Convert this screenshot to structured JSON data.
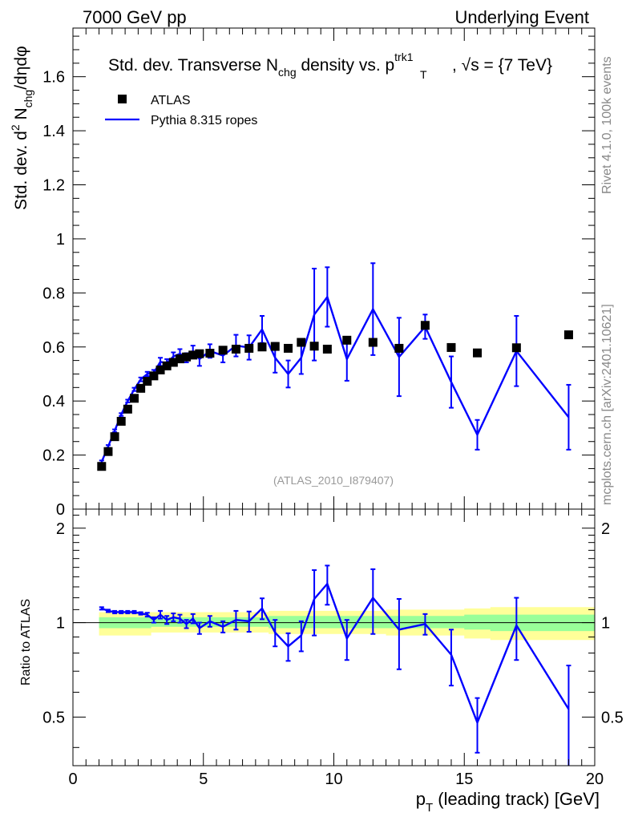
{
  "header": {
    "left_label": "7000 GeV pp",
    "right_label": "Underlying Event"
  },
  "side_labels": {
    "rivet": "Rivet 4.1.0,  100k events",
    "mcplots": "mcplots.cern.ch [arXiv:2401.10621]"
  },
  "chart_data": [
    {
      "type": "scatter",
      "panel": "main",
      "title": {
        "prefix": "Std. dev. Transverse N",
        "sub1": "chg",
        "middle": " density vs. p",
        "sub2": "T",
        "sup2": "trk1",
        "suffix": ", √s = {7 TeV}"
      },
      "ylabel": {
        "prefix": "Std. dev. d",
        "sup": "2",
        "n": " N",
        "sub": "chg",
        "suffix": "/dηdφ"
      },
      "analysis_label": "(ATLAS_2010_I879407)",
      "xlim": [
        0,
        20
      ],
      "ylim": [
        0,
        1.78
      ],
      "y_ticks": [
        0,
        0.2,
        0.4,
        0.6,
        0.8,
        1,
        1.2,
        1.4,
        1.6
      ],
      "y_tick_labels": [
        "0",
        "0.2",
        "0.4",
        "0.6",
        "0.8",
        "1",
        "1.2",
        "1.4",
        "1.6"
      ],
      "legend": [
        {
          "name": "ATLAS",
          "marker": "square",
          "color": "#000000"
        },
        {
          "name": "Pythia 8.315 ropes",
          "marker": "line",
          "color": "#0000ff"
        }
      ],
      "series": [
        {
          "name": "ATLAS",
          "x": [
            1.1,
            1.35,
            1.6,
            1.85,
            2.1,
            2.35,
            2.6,
            2.85,
            3.1,
            3.35,
            3.6,
            3.85,
            4.1,
            4.35,
            4.6,
            4.85,
            5.25,
            5.75,
            6.25,
            6.75,
            7.25,
            7.75,
            8.25,
            8.75,
            9.25,
            9.75,
            10.5,
            11.5,
            12.5,
            13.5,
            14.5,
            15.5,
            17.0,
            19.0
          ],
          "y": [
            0.158,
            0.213,
            0.268,
            0.325,
            0.37,
            0.41,
            0.447,
            0.473,
            0.493,
            0.515,
            0.53,
            0.543,
            0.556,
            0.563,
            0.57,
            0.575,
            0.577,
            0.588,
            0.592,
            0.595,
            0.6,
            0.602,
            0.595,
            0.617,
            0.603,
            0.592,
            0.625,
            0.617,
            0.595,
            0.68,
            0.598,
            0.578,
            0.597,
            0.645
          ]
        },
        {
          "name": "Pythia 8.315 ropes",
          "x": [
            1.1,
            1.35,
            1.6,
            1.85,
            2.1,
            2.35,
            2.6,
            2.85,
            3.1,
            3.35,
            3.6,
            3.85,
            4.1,
            4.35,
            4.6,
            4.85,
            5.25,
            5.75,
            6.25,
            6.75,
            7.25,
            7.75,
            8.25,
            8.75,
            9.25,
            9.75,
            10.5,
            11.5,
            12.5,
            13.5,
            14.5,
            15.5,
            17.0,
            19.0
          ],
          "y": [
            0.175,
            0.232,
            0.29,
            0.35,
            0.4,
            0.443,
            0.48,
            0.5,
            0.505,
            0.545,
            0.54,
            0.565,
            0.575,
            0.56,
            0.585,
            0.555,
            0.585,
            0.568,
            0.605,
            0.598,
            0.665,
            0.56,
            0.5,
            0.56,
            0.72,
            0.785,
            0.555,
            0.74,
            0.563,
            0.675,
            0.47,
            0.275,
            0.585,
            0.34
          ],
          "yerr": [
            0.005,
            0.005,
            0.005,
            0.005,
            0.005,
            0.006,
            0.007,
            0.008,
            0.01,
            0.015,
            0.015,
            0.015,
            0.017,
            0.017,
            0.02,
            0.025,
            0.025,
            0.025,
            0.04,
            0.045,
            0.05,
            0.055,
            0.05,
            0.06,
            0.17,
            0.11,
            0.08,
            0.17,
            0.145,
            0.045,
            0.095,
            0.055,
            0.13,
            0.12
          ]
        }
      ]
    },
    {
      "type": "line",
      "panel": "ratio",
      "ylabel": "Ratio to ATLAS",
      "xlabel": {
        "prefix": "p",
        "sub": "T",
        "suffix": " (leading track) [GeV]"
      },
      "xlim": [
        0,
        20
      ],
      "ylim": [
        0.35,
        2.3
      ],
      "y_scale": "log",
      "x_ticks": [
        0,
        5,
        10,
        15,
        20
      ],
      "x_tick_labels": [
        "0",
        "5",
        "10",
        "15",
        "20"
      ],
      "y_ticks": [
        0.5,
        1,
        2
      ],
      "y_tick_labels": [
        "0.5",
        "1",
        "2"
      ],
      "bands": [
        {
          "name": "total uncertainty",
          "color": "#ffff99",
          "x": [
            1.0,
            3.0,
            7.5,
            12.0,
            15.0,
            16.0,
            20.0
          ],
          "lower": [
            0.91,
            0.93,
            0.92,
            0.91,
            0.89,
            0.88,
            0.87
          ],
          "upper": [
            1.08,
            1.08,
            1.09,
            1.1,
            1.11,
            1.12,
            1.12
          ]
        },
        {
          "name": "stat uncertainty",
          "color": "#99ff99",
          "x": [
            1.0,
            3.0,
            7.5,
            12.0,
            15.0,
            16.0,
            20.0
          ],
          "lower": [
            0.96,
            0.97,
            0.96,
            0.96,
            0.95,
            0.94,
            0.94
          ],
          "upper": [
            1.04,
            1.04,
            1.05,
            1.05,
            1.06,
            1.06,
            1.06
          ]
        }
      ],
      "series": [
        {
          "name": "Pythia 8.315 ropes / ATLAS",
          "x": [
            1.1,
            1.35,
            1.6,
            1.85,
            2.1,
            2.35,
            2.6,
            2.85,
            3.1,
            3.35,
            3.6,
            3.85,
            4.1,
            4.35,
            4.6,
            4.85,
            5.25,
            5.75,
            6.25,
            6.75,
            7.25,
            7.75,
            8.25,
            8.75,
            9.25,
            9.75,
            10.5,
            11.5,
            12.5,
            13.5,
            14.5,
            15.5,
            17.0,
            19.0
          ],
          "y": [
            1.11,
            1.09,
            1.08,
            1.08,
            1.08,
            1.08,
            1.07,
            1.06,
            1.02,
            1.06,
            1.02,
            1.04,
            1.03,
            0.99,
            1.03,
            0.96,
            1.01,
            0.97,
            1.02,
            1.01,
            1.11,
            0.93,
            0.84,
            0.91,
            1.19,
            1.33,
            0.89,
            1.2,
            0.95,
            0.99,
            0.79,
            0.48,
            0.98,
            0.53
          ],
          "yerr": [
            0.01,
            0.01,
            0.01,
            0.01,
            0.01,
            0.01,
            0.01,
            0.015,
            0.02,
            0.03,
            0.03,
            0.03,
            0.03,
            0.03,
            0.035,
            0.04,
            0.04,
            0.04,
            0.07,
            0.075,
            0.085,
            0.09,
            0.085,
            0.1,
            0.28,
            0.19,
            0.13,
            0.28,
            0.24,
            0.075,
            0.16,
            0.095,
            0.22,
            0.2
          ]
        }
      ]
    }
  ]
}
